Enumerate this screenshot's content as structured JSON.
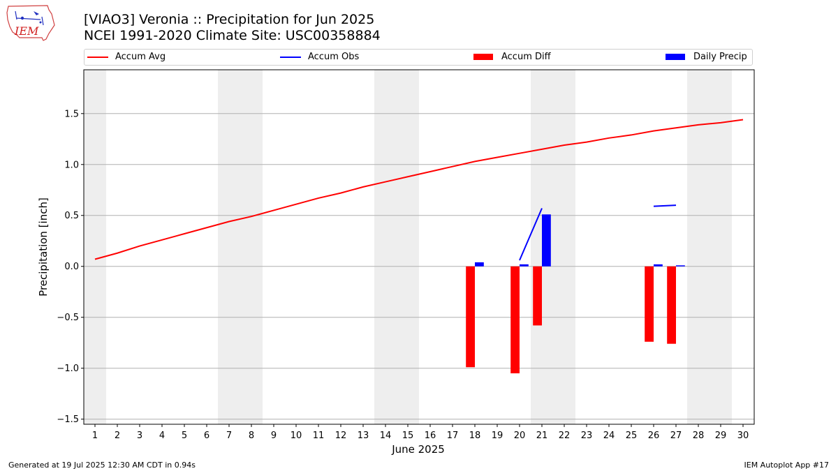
{
  "header": {
    "title_line1": "[VIAO3] Veronia :: Precipitation for Jun 2025",
    "title_line2": "NCEI 1991-2020 Climate Site: USC00358884"
  },
  "logo": {
    "text": "IEM"
  },
  "footer": {
    "left": "Generated at 19 Jul 2025 12:30 AM CDT in 0.94s",
    "right": "IEM Autoplot App #17"
  },
  "legend": {
    "items": [
      {
        "label": "Accum Avg",
        "color": "#ff0000",
        "kind": "line"
      },
      {
        "label": "Accum Obs",
        "color": "#0000ff",
        "kind": "line"
      },
      {
        "label": "Accum Diff",
        "color": "#ff0000",
        "kind": "box"
      },
      {
        "label": "Daily Precip",
        "color": "#0000ff",
        "kind": "box"
      }
    ]
  },
  "chart_data": {
    "type": "bar",
    "xlabel": "June 2025",
    "ylabel": "Precipitation [inch]",
    "xlim": [
      0.5,
      30.5
    ],
    "ylim": [
      -1.55,
      1.93
    ],
    "yticks": [
      -1.5,
      -1.0,
      -0.5,
      0.0,
      0.5,
      1.0,
      1.5
    ],
    "ytick_labels": [
      "−1.5",
      "−1.0",
      "−0.5",
      "0.0",
      "0.5",
      "1.0",
      "1.5"
    ],
    "grid": "horizontal",
    "weekend_shading_days": [
      1,
      7,
      8,
      14,
      15,
      21,
      22,
      28,
      29
    ],
    "days": [
      1,
      2,
      3,
      4,
      5,
      6,
      7,
      8,
      9,
      10,
      11,
      12,
      13,
      14,
      15,
      16,
      17,
      18,
      19,
      20,
      21,
      22,
      23,
      24,
      25,
      26,
      27,
      28,
      29,
      30
    ],
    "series": [
      {
        "name": "Accum Avg",
        "type": "line",
        "color": "#ff0000",
        "values": [
          0.07,
          0.13,
          0.2,
          0.26,
          0.32,
          0.38,
          0.44,
          0.49,
          0.55,
          0.61,
          0.67,
          0.72,
          0.78,
          0.83,
          0.88,
          0.93,
          0.98,
          1.03,
          1.07,
          1.11,
          1.15,
          1.19,
          1.22,
          1.26,
          1.29,
          1.33,
          1.36,
          1.39,
          1.41,
          1.44
        ]
      },
      {
        "name": "Accum Obs",
        "type": "line",
        "color": "#0000ff",
        "segments": [
          {
            "x": [
              20,
              21
            ],
            "values": [
              0.06,
              0.57
            ]
          },
          {
            "x": [
              26,
              27
            ],
            "values": [
              0.59,
              0.6
            ]
          }
        ]
      },
      {
        "name": "Accum Diff",
        "type": "bar",
        "color": "#ff0000",
        "x": [
          18,
          20,
          21,
          26,
          27
        ],
        "values": [
          -0.99,
          -1.05,
          -0.58,
          -0.74,
          -0.76
        ]
      },
      {
        "name": "Daily Precip",
        "type": "bar",
        "color": "#0000ff",
        "x": [
          18,
          20,
          21,
          26,
          27
        ],
        "values": [
          0.04,
          0.02,
          0.51,
          0.02,
          0.01
        ]
      }
    ]
  }
}
